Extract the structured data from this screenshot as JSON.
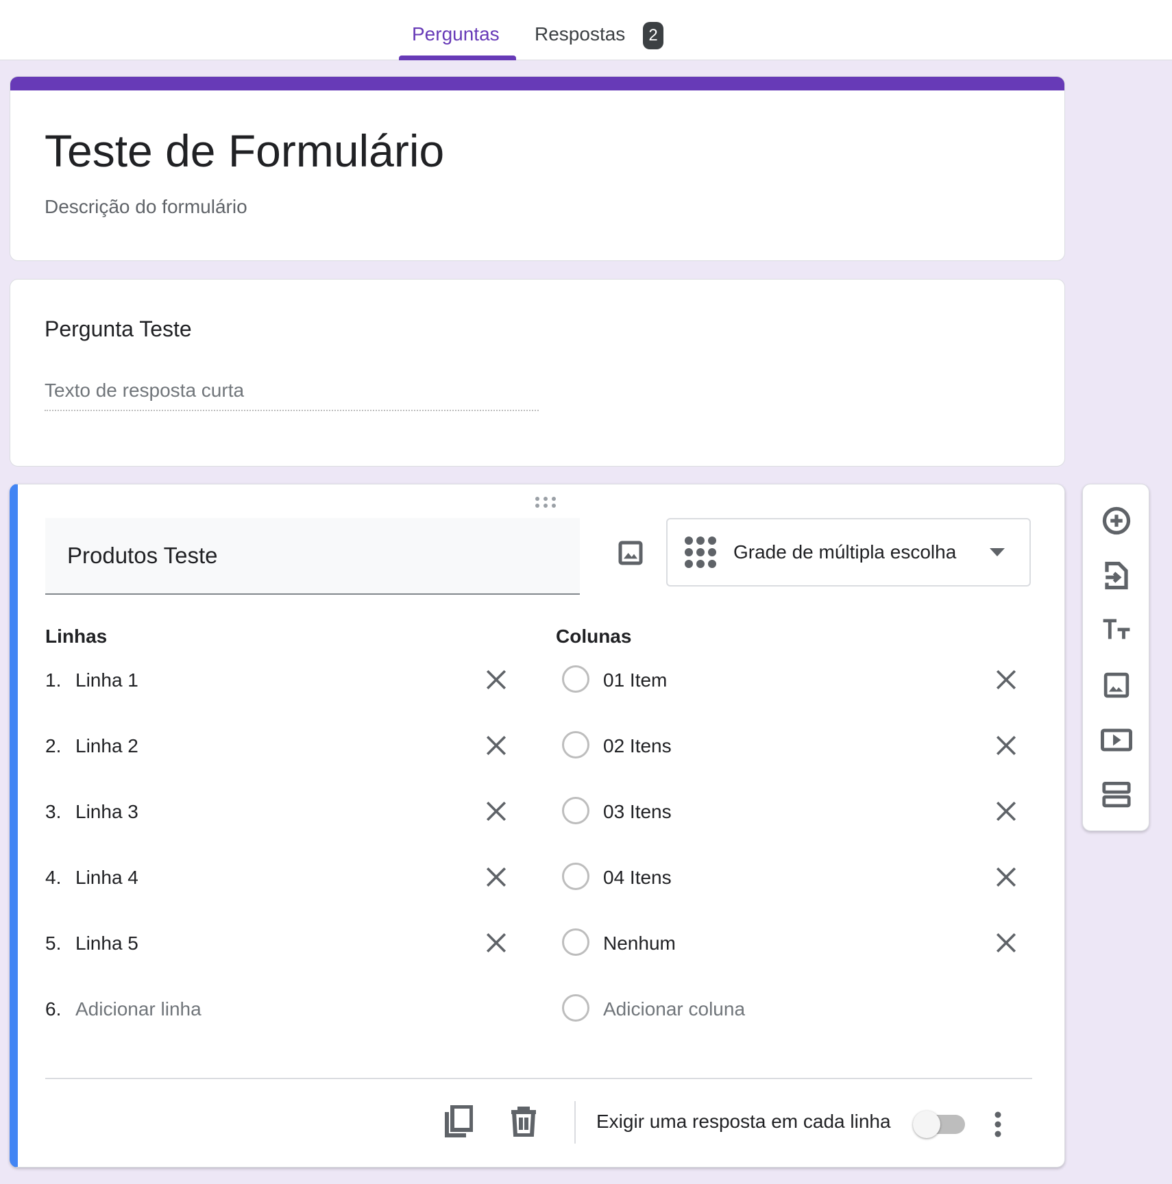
{
  "tabs": {
    "questions": "Perguntas",
    "responses": "Respostas",
    "responses_count": "2",
    "accent": "#673ab7"
  },
  "header": {
    "title": "Teste de Formulário",
    "description": "Descrição do formulário"
  },
  "question1": {
    "title": "Pergunta Teste",
    "placeholder": "Texto de resposta curta"
  },
  "question2": {
    "title": "Produtos Teste",
    "type": "Grade de múltipla escolha",
    "rows_label": "Linhas",
    "columns_label": "Colunas",
    "rows": [
      {
        "n": "1.",
        "label": "Linha 1"
      },
      {
        "n": "2.",
        "label": "Linha 2"
      },
      {
        "n": "3.",
        "label": "Linha 3"
      },
      {
        "n": "4.",
        "label": "Linha 4"
      },
      {
        "n": "5.",
        "label": "Linha 5"
      }
    ],
    "add_row": {
      "n": "6.",
      "label": "Adicionar linha"
    },
    "columns": [
      "01 Item",
      "02 Itens",
      "03 Itens",
      "04 Itens",
      "Nenhum"
    ],
    "add_column": "Adicionar coluna",
    "require_label": "Exigir uma resposta em cada linha",
    "require_on": false,
    "active_color": "#4285f4"
  },
  "toolbar": {
    "icons": [
      "add-question-icon",
      "import-questions-icon",
      "add-title-icon",
      "add-image-icon",
      "add-video-icon",
      "add-section-icon"
    ]
  }
}
